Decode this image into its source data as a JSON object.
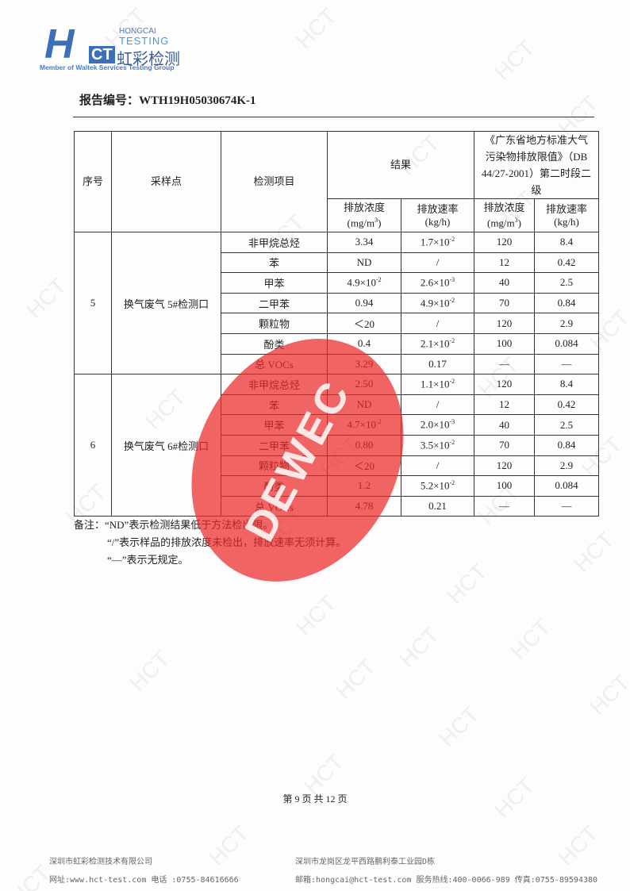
{
  "logo": {
    "mark": "HCT",
    "en1": "HONGCAI",
    "en2": "TESTING",
    "cn": "虹彩检测",
    "member": "Member of Waltek Services Testing Group"
  },
  "report_no": "报告编号：WTH19H05030674K-1",
  "watermark": "HCT",
  "stamp": "DEWEC",
  "table": {
    "h_no": "序号",
    "h_site": "采样点",
    "h_item": "检测项目",
    "h_result": "结果",
    "h_std": "《广东省地方标准大气污染物排放限值》（DB 44/27-2001）第二时段二级",
    "h_conc": "排放浓度",
    "h_conc_unit": "(mg/m",
    "h_rate": "排放速率",
    "h_rate_unit": "(kg/h)",
    "groups": [
      {
        "no": "5",
        "site": "换气废气 5#检测口",
        "rows": [
          [
            "非甲烷总烃",
            "3.34",
            "1.7×10-2",
            "120",
            "8.4"
          ],
          [
            "苯",
            "ND",
            "/",
            "12",
            "0.42"
          ],
          [
            "甲苯",
            "4.9×10-2",
            "2.6×10-3",
            "40",
            "2.5"
          ],
          [
            "二甲苯",
            "0.94",
            "4.9×10-2",
            "70",
            "0.84"
          ],
          [
            "颗粒物",
            "＜20",
            "/",
            "120",
            "2.9"
          ],
          [
            "酚类",
            "0.4",
            "2.1×10-2",
            "100",
            "0.084"
          ],
          [
            "总 VOCs",
            "3.29",
            "0.17",
            "—",
            "—"
          ]
        ]
      },
      {
        "no": "6",
        "site": "换气废气 6#检测口",
        "rows": [
          [
            "非甲烷总烃",
            "2.50",
            "1.1×10-2",
            "120",
            "8.4"
          ],
          [
            "苯",
            "ND",
            "/",
            "12",
            "0.42"
          ],
          [
            "甲苯",
            "4.7×10-2",
            "2.0×10-3",
            "40",
            "2.5"
          ],
          [
            "二甲苯",
            "0.80",
            "3.5×10-2",
            "70",
            "0.84"
          ],
          [
            "颗粒物",
            "＜20",
            "/",
            "120",
            "2.9"
          ],
          [
            "酚类",
            "1.2",
            "5.2×10-2",
            "100",
            "0.084"
          ],
          [
            "总 VOCs",
            "4.78",
            "0.21",
            "—",
            "—"
          ]
        ]
      }
    ]
  },
  "notes": [
    "备注：“ND”表示检测结果低于方法检出限。",
    "“/”表示样品的排放浓度未检出，排放速率无须计算。",
    "“—”表示无规定。"
  ],
  "page": "第 9 页 共 12 页",
  "footer": {
    "company": "深圳市虹彩检测技术有限公司",
    "web": "网址:www.hct-test.com   电话 :0755-84616666",
    "address": "深圳市龙岗区龙平西路鹏利泰工业园D栋",
    "contact": "邮箱:hongcai@hct-test.com   服务热线:400-0066-989   传真:0755-89594380"
  }
}
